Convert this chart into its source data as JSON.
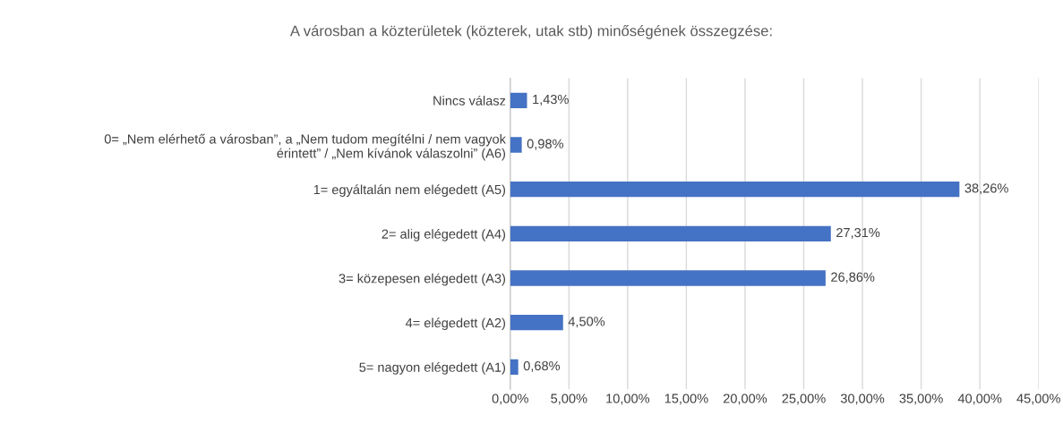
{
  "chart_data": {
    "type": "bar",
    "orientation": "horizontal",
    "title": "A városban a közterületek (közterek, utak stb) minőségének összegzése:",
    "categories": [
      "Nincs válasz",
      "0= „Nem elérhető a városban”, a „Nem tudom megítélni / nem vagyok\nérintett” / „Nem kívánok válaszolni” (A6)",
      "1= egyáltalán nem elégedett (A5)",
      "2= alig elégedett (A4)",
      "3= közepesen elégedett (A3)",
      "4= elégedett (A2)",
      "5= nagyon elégedett (A1)"
    ],
    "values": [
      1.43,
      0.98,
      38.26,
      27.31,
      26.86,
      4.5,
      0.68
    ],
    "value_labels": [
      "1,43%",
      "0,98%",
      "38,26%",
      "27,31%",
      "26,86%",
      "4,50%",
      "0,68%"
    ],
    "color": "#4472c4",
    "xlim": [
      0,
      45
    ],
    "xticks": [
      {
        "value": 0,
        "label": "0,00%"
      },
      {
        "value": 5,
        "label": "5,00%"
      },
      {
        "value": 10,
        "label": "10,00%"
      },
      {
        "value": 15,
        "label": "15,00%"
      },
      {
        "value": 20,
        "label": "20,00%"
      },
      {
        "value": 25,
        "label": "25,00%"
      },
      {
        "value": 30,
        "label": "30,00%"
      },
      {
        "value": 35,
        "label": "35,00%"
      },
      {
        "value": 40,
        "label": "40,00%"
      },
      {
        "value": 45,
        "label": "45,00%"
      }
    ],
    "grid": "x"
  }
}
